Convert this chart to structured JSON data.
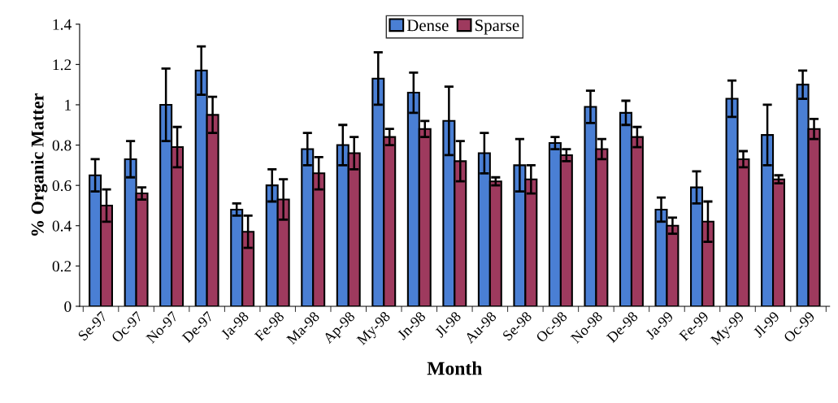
{
  "chart_data": {
    "type": "bar",
    "xlabel": "Month",
    "ylabel": "% Organic Matter",
    "categories": [
      "Se-97",
      "Oc-97",
      "No-97",
      "De-97",
      "Ja-98",
      "Fe-98",
      "Ma-98",
      "Ap-98",
      "My-98",
      "Jn-98",
      "Jl-98",
      "Au-98",
      "Se-98",
      "Oc-98",
      "No-98",
      "De-98",
      "Ja-99",
      "Fe-99",
      "My-99",
      "Jl-99",
      "Oc-99"
    ],
    "series": [
      {
        "name": "Dense",
        "color": "#4a7fd4",
        "values": [
          0.65,
          0.73,
          1.0,
          1.17,
          0.48,
          0.6,
          0.78,
          0.8,
          1.13,
          1.06,
          0.92,
          0.76,
          0.7,
          0.81,
          0.99,
          0.96,
          0.48,
          0.59,
          1.03,
          0.85,
          1.1
        ],
        "errors": [
          0.08,
          0.09,
          0.18,
          0.12,
          0.03,
          0.08,
          0.08,
          0.1,
          0.13,
          0.1,
          0.17,
          0.1,
          0.13,
          0.03,
          0.08,
          0.06,
          0.06,
          0.08,
          0.09,
          0.15,
          0.07
        ]
      },
      {
        "name": "Sparse",
        "color": "#9e3a5e",
        "values": [
          0.5,
          0.56,
          0.79,
          0.95,
          0.37,
          0.53,
          0.66,
          0.76,
          0.84,
          0.88,
          0.72,
          0.62,
          0.63,
          0.75,
          0.78,
          0.84,
          0.4,
          0.42,
          0.73,
          0.63,
          0.88
        ],
        "errors": [
          0.08,
          0.03,
          0.1,
          0.09,
          0.08,
          0.1,
          0.08,
          0.08,
          0.04,
          0.04,
          0.1,
          0.02,
          0.07,
          0.03,
          0.05,
          0.05,
          0.04,
          0.1,
          0.04,
          0.02,
          0.05
        ]
      }
    ],
    "ylim": [
      0,
      1.4
    ],
    "yticks": [
      0,
      0.2,
      0.4,
      0.6,
      0.8,
      1,
      1.2,
      1.4
    ],
    "grid": false,
    "legend": "top"
  }
}
